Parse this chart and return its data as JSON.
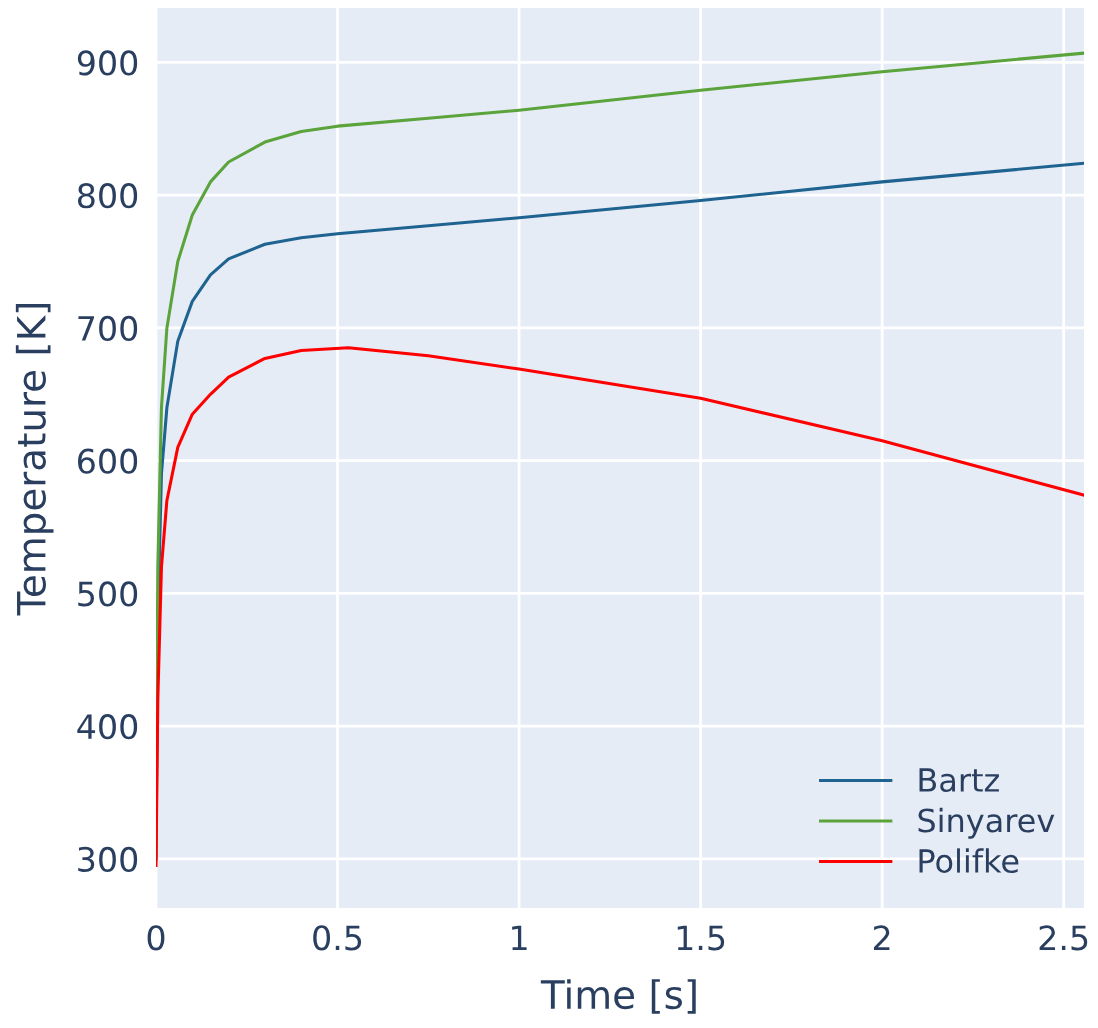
{
  "chart_data": {
    "type": "line",
    "xlabel": "Time [s]",
    "ylabel": "Temperature [K]",
    "xlim": [
      0,
      2.556
    ],
    "ylim": [
      263,
      941
    ],
    "xticks": [
      0,
      0.5,
      1,
      1.5,
      2,
      2.5
    ],
    "yticks": [
      300,
      400,
      500,
      600,
      700,
      800,
      900
    ],
    "grid": true,
    "legend": "bottom right",
    "marker": "none",
    "line_style": "solid",
    "series": [
      {
        "name": "Bartz",
        "color": "#1f6391",
        "x": [
          0,
          0.005,
          0.015,
          0.03,
          0.06,
          0.1,
          0.15,
          0.2,
          0.3,
          0.4,
          0.5,
          0.75,
          1.0,
          1.5,
          2.0,
          2.556
        ],
        "values": [
          300,
          480,
          590,
          640,
          690,
          720,
          740,
          752,
          763,
          768,
          771,
          777,
          783,
          796,
          810,
          824
        ]
      },
      {
        "name": "Sinyarev",
        "color": "#5ba33b",
        "x": [
          0,
          0.005,
          0.015,
          0.03,
          0.06,
          0.1,
          0.15,
          0.2,
          0.3,
          0.4,
          0.5,
          0.75,
          1.0,
          1.5,
          2.0,
          2.556
        ],
        "values": [
          300,
          520,
          640,
          700,
          750,
          785,
          810,
          825,
          840,
          848,
          852,
          858,
          864,
          879,
          893,
          907
        ]
      },
      {
        "name": "Polifke",
        "color": "#ff0000",
        "x": [
          0,
          0.005,
          0.015,
          0.03,
          0.06,
          0.1,
          0.15,
          0.2,
          0.3,
          0.4,
          0.53,
          0.75,
          1.0,
          1.5,
          2.0,
          2.556
        ],
        "values": [
          295,
          420,
          520,
          570,
          610,
          635,
          650,
          663,
          677,
          683,
          685,
          679,
          669,
          647,
          615,
          574
        ]
      }
    ]
  }
}
